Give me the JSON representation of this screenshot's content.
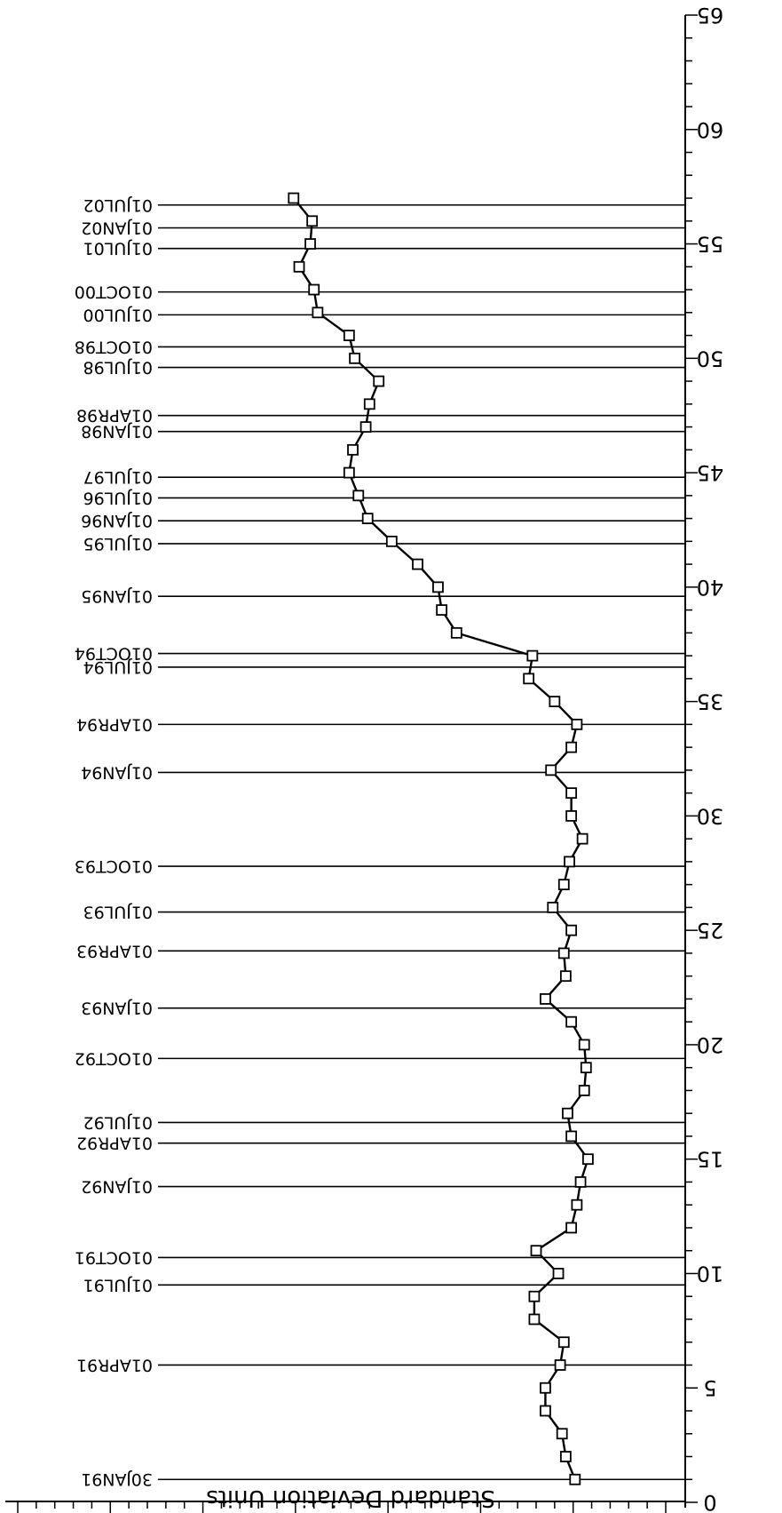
{
  "chart_data": {
    "type": "line",
    "ylabel": "Standard Deviation Units",
    "xlim": [
      0,
      65
    ],
    "ylim": [
      -30,
      5
    ],
    "x_ticks": [
      0,
      5,
      10,
      15,
      20,
      25,
      30,
      35,
      40,
      45,
      50,
      55,
      60,
      65
    ],
    "y_ticks": [
      -30,
      -25,
      -20,
      -15,
      -10,
      -5,
      0,
      5
    ],
    "series": [
      {
        "marker": "open-square",
        "x": [
          1,
          2,
          3,
          4,
          5,
          6,
          7,
          8,
          9,
          10,
          11,
          12,
          13,
          14,
          15,
          16,
          17,
          18,
          19,
          20,
          21,
          22,
          23,
          24,
          25,
          26,
          27,
          28,
          29,
          30,
          31,
          32,
          33,
          34,
          35,
          36,
          37,
          38,
          39,
          40,
          41,
          42,
          43,
          44,
          45,
          46,
          47,
          48,
          49,
          50,
          51,
          52,
          53,
          54,
          55,
          56,
          57
        ],
        "y": [
          0.1,
          -0.4,
          -0.6,
          -1.5,
          -1.5,
          -0.7,
          -0.5,
          -2.1,
          -2.1,
          -0.8,
          -2.0,
          -0.1,
          0.2,
          0.4,
          0.8,
          -0.1,
          -0.3,
          0.6,
          0.7,
          0.6,
          -0.1,
          -1.5,
          -0.4,
          -0.5,
          -0.1,
          -1.1,
          -0.5,
          -0.2,
          0.5,
          -0.1,
          -0.1,
          -1.2,
          -0.1,
          0.2,
          -1.0,
          -2.4,
          -2.2,
          -6.3,
          -7.1,
          -7.3,
          -8.4,
          -9.8,
          -11.1,
          -11.6,
          -12.1,
          -11.9,
          -11.2,
          -11.0,
          -10.5,
          -11.8,
          -12.1,
          -13.8,
          -14.0,
          -14.8,
          -14.2,
          -14.1,
          -15.1
        ]
      }
    ],
    "reference_lines": [
      {
        "x": 1.0,
        "label": "30JAN91"
      },
      {
        "x": 6.0,
        "label": "01APR91"
      },
      {
        "x": 9.5,
        "label": "01JUL91"
      },
      {
        "x": 10.7,
        "label": "01OCT91"
      },
      {
        "x": 13.8,
        "label": "01JAN92"
      },
      {
        "x": 15.7,
        "label": "01APR92"
      },
      {
        "x": 16.6,
        "label": "01JUL92"
      },
      {
        "x": 19.4,
        "label": "01OCT92"
      },
      {
        "x": 21.6,
        "label": "01JAN93"
      },
      {
        "x": 24.1,
        "label": "01APR93"
      },
      {
        "x": 25.8,
        "label": "01JUL93"
      },
      {
        "x": 27.8,
        "label": "01OCT93"
      },
      {
        "x": 31.9,
        "label": "01JAN94"
      },
      {
        "x": 34.0,
        "label": "01APR94"
      },
      {
        "x": 36.5,
        "label": "01JUL94"
      },
      {
        "x": 37.1,
        "label": "01OCT94"
      },
      {
        "x": 39.6,
        "label": "01JAN95"
      },
      {
        "x": 41.9,
        "label": "01JUL95"
      },
      {
        "x": 42.9,
        "label": "01JAN96"
      },
      {
        "x": 43.9,
        "label": "01JUL96"
      },
      {
        "x": 44.8,
        "label": "01JUL97"
      },
      {
        "x": 46.8,
        "label": "01JAN98"
      },
      {
        "x": 47.5,
        "label": "01APR98"
      },
      {
        "x": 49.6,
        "label": "01JUL98"
      },
      {
        "x": 50.5,
        "label": "01OCT98"
      },
      {
        "x": 51.9,
        "label": "01JUL00"
      },
      {
        "x": 52.9,
        "label": "01OCT00"
      },
      {
        "x": 54.8,
        "label": "01JUL01"
      },
      {
        "x": 55.7,
        "label": "01JAN02"
      },
      {
        "x": 56.7,
        "label": "01JUL02"
      }
    ]
  }
}
